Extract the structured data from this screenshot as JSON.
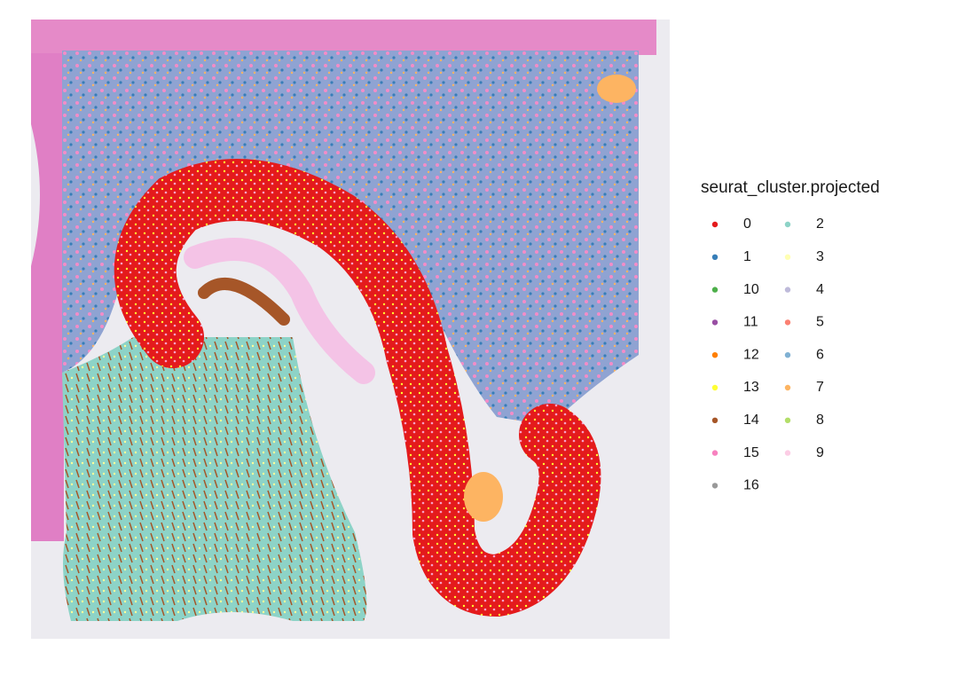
{
  "legend": {
    "title": "seurat_cluster.projected",
    "items": [
      {
        "label": "0",
        "color": "#e41a1c"
      },
      {
        "label": "1",
        "color": "#377eb8"
      },
      {
        "label": "10",
        "color": "#4daf4a"
      },
      {
        "label": "11",
        "color": "#984ea3"
      },
      {
        "label": "12",
        "color": "#ff7f00"
      },
      {
        "label": "13",
        "color": "#ffff33"
      },
      {
        "label": "14",
        "color": "#a65628"
      },
      {
        "label": "15",
        "color": "#f781bf"
      },
      {
        "label": "16",
        "color": "#999999"
      },
      {
        "label": "2",
        "color": "#8dd3c7"
      },
      {
        "label": "3",
        "color": "#ffffb3"
      },
      {
        "label": "4",
        "color": "#bebada"
      },
      {
        "label": "5",
        "color": "#fb8072"
      },
      {
        "label": "6",
        "color": "#80b1d3"
      },
      {
        "label": "7",
        "color": "#fdb462"
      },
      {
        "label": "8",
        "color": "#b3de69"
      },
      {
        "label": "9",
        "color": "#fccde5"
      }
    ]
  }
}
